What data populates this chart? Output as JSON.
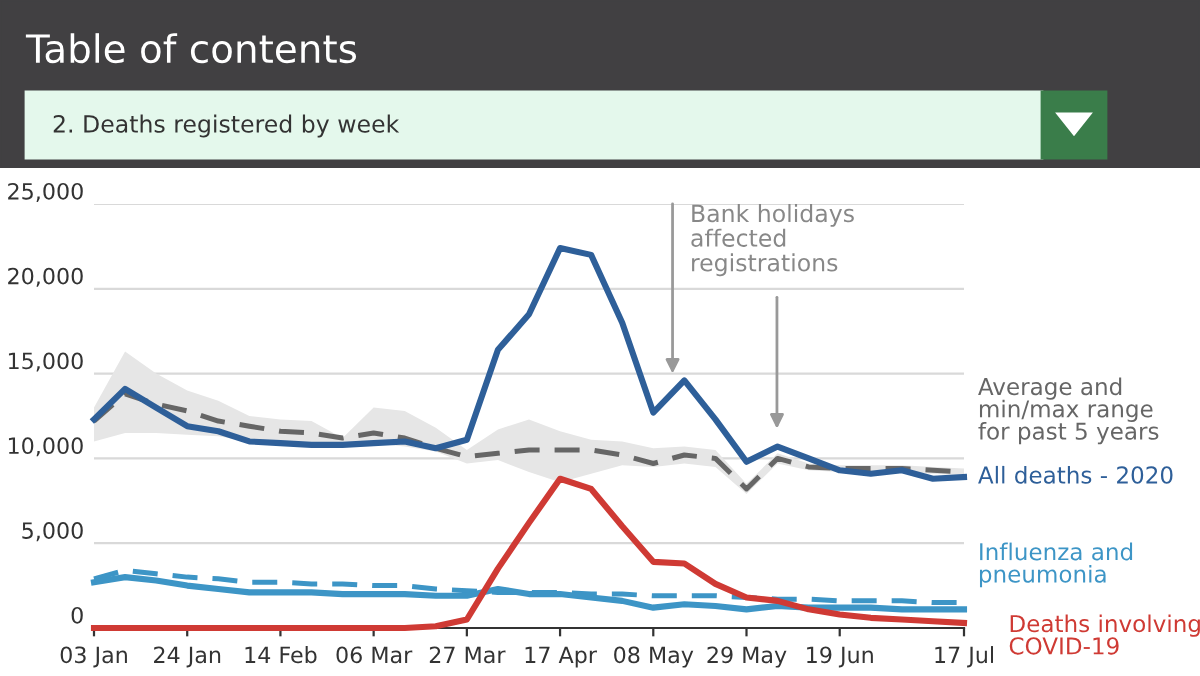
{
  "chart_data": {
    "type": "line",
    "title": "Table of contents",
    "subtitle": "2. Deaths registered by week",
    "x": [
      "2020-01-03",
      "2020-01-10",
      "2020-01-17",
      "2020-01-24",
      "2020-01-31",
      "2020-02-07",
      "2020-02-14",
      "2020-02-21",
      "2020-02-28",
      "2020-03-06",
      "2020-03-13",
      "2020-03-20",
      "2020-03-27",
      "2020-04-03",
      "2020-04-10",
      "2020-04-17",
      "2020-04-24",
      "2020-05-01",
      "2020-05-08",
      "2020-05-15",
      "2020-05-22",
      "2020-05-29",
      "2020-06-05",
      "2020-06-12",
      "2020-06-19",
      "2020-06-26",
      "2020-07-03",
      "2020-07-10",
      "2020-07-17"
    ],
    "series": [
      {
        "name": "Average and\nmin/max range\nfor past 5 years",
        "color": "#666666",
        "line_style": "dashed",
        "values": [
          12200,
          13800,
          13200,
          12800,
          12200,
          11900,
          11600,
          11500,
          11200,
          11500,
          11200,
          10600,
          10100,
          10300,
          10500,
          10500,
          10500,
          10200,
          9700,
          10200,
          10000,
          8200,
          10000,
          9500,
          9400,
          9400,
          9400,
          9300,
          9200
        ],
        "lower": [
          11000,
          11500,
          11500,
          11400,
          11300,
          11000,
          10900,
          10900,
          10800,
          10900,
          10700,
          10400,
          9700,
          9900,
          9200,
          8600,
          9100,
          9600,
          9500,
          9700,
          9500,
          7900,
          9700,
          9300,
          9200,
          9200,
          9200,
          9100,
          9000
        ],
        "upper": [
          13000,
          16300,
          15000,
          14000,
          13400,
          12500,
          12300,
          12200,
          11200,
          13000,
          12800,
          11800,
          10500,
          11700,
          12300,
          11600,
          11100,
          11000,
          10600,
          10700,
          10500,
          8500,
          10300,
          9700,
          9600,
          9600,
          9600,
          9500,
          9400
        ]
      },
      {
        "name": "All deaths - 2020",
        "color": "#2e5f99",
        "line_style": "solid",
        "values": [
          12300,
          14100,
          13000,
          11900,
          11600,
          11000,
          10900,
          10800,
          10800,
          10900,
          11000,
          10600,
          11100,
          16400,
          18500,
          22400,
          22000,
          18000,
          12700,
          14600,
          12300,
          9800,
          10700,
          10000,
          9300,
          9100,
          9300,
          8800,
          8900
        ]
      },
      {
        "color": "#3d95c6",
        "line_style": "dashed",
        "values": [
          2900,
          3400,
          3200,
          3000,
          2900,
          2700,
          2700,
          2600,
          2600,
          2500,
          2500,
          2300,
          2200,
          2100,
          2100,
          2100,
          2000,
          2000,
          1900,
          1900,
          1900,
          1800,
          1700,
          1700,
          1600,
          1600,
          1600,
          1500,
          1500
        ]
      },
      {
        "name": "Influenza and\npneumonia",
        "color": "#3d95c6",
        "line_style": "solid",
        "values": [
          2700,
          3000,
          2800,
          2500,
          2300,
          2100,
          2100,
          2100,
          2000,
          2000,
          2000,
          1900,
          1900,
          2300,
          2000,
          2000,
          1800,
          1600,
          1200,
          1400,
          1300,
          1100,
          1300,
          1200,
          1200,
          1200,
          1100,
          1100,
          1100
        ]
      },
      {
        "name": "Deaths involving\nCOVID-19",
        "color": "#cf3a34",
        "line_style": "solid",
        "values": [
          0,
          0,
          0,
          0,
          0,
          0,
          0,
          0,
          0,
          0,
          0,
          100,
          500,
          3500,
          6200,
          8800,
          8200,
          6000,
          3900,
          3800,
          2600,
          1800,
          1600,
          1100,
          800,
          600,
          500,
          400,
          300
        ]
      }
    ],
    "xlim": [
      "2020-01-03",
      "2020-07-17"
    ],
    "xticks": [
      {
        "value": "2020-01-03",
        "label": "03 Jan"
      },
      {
        "value": "2020-01-24",
        "label": "24 Jan"
      },
      {
        "value": "2020-02-14",
        "label": "14 Feb"
      },
      {
        "value": "2020-03-06",
        "label": "06 Mar"
      },
      {
        "value": "2020-03-27",
        "label": "27 Mar"
      },
      {
        "value": "2020-04-17",
        "label": "17 Apr"
      },
      {
        "value": "2020-05-08",
        "label": "08 May"
      },
      {
        "value": "2020-05-29",
        "label": "29 May"
      },
      {
        "value": "2020-06-19",
        "label": "19 Jun"
      },
      {
        "value": "2020-07-17",
        "label": "17 Jul"
      }
    ],
    "ylim": [
      0,
      25000
    ],
    "yticks": [
      0,
      {
        "value": 5000,
        "label": "5,000"
      },
      {
        "value": 10000,
        "label": "10,000"
      },
      {
        "value": 15000,
        "label": "15,000"
      },
      {
        "value": 20000,
        "label": "20,000"
      },
      {
        "value": 25000,
        "label": "25,000"
      }
    ],
    "grid": "y",
    "marker": "none",
    "annotations": [
      "Bank holidays\naffected\nregistrations"
    ]
  }
}
